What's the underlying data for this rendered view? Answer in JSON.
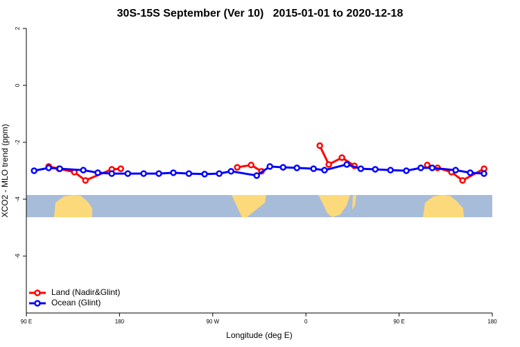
{
  "chart_data": {
    "type": "line",
    "title": "30S-15S September (Ver 10)   2015-01-01 to 2020-12-18",
    "x_label": "Longitude (deg E)",
    "y_label": "XCO2 - MLO trend (ppm)",
    "xlim": [
      -270,
      180
    ],
    "ylim": [
      -8,
      2
    ],
    "xticks": [
      {
        "value": -270,
        "label": "90 E"
      },
      {
        "value": -180,
        "label": "180"
      },
      {
        "value": -90,
        "label": "90 W"
      },
      0,
      {
        "value": 90,
        "label": "90 E"
      },
      180
    ],
    "yticks": [
      2,
      0,
      -2,
      -4,
      -6
    ],
    "legend": "bottom-left",
    "series": [
      {
        "name": "Land (Nadir&Glint)",
        "color": "#ff0000",
        "x": [
          -248.4,
          -238.4,
          -223.6,
          -212.9,
          -187.5,
          -178.8,
          null,
          -66.3,
          -52.9,
          -42.9,
          null,
          13.4,
          22.1,
          34.8,
          46.9,
          null,
          117.2,
          127.2,
          140.6,
          151.3,
          172.1
        ],
        "values": [
          -2.85,
          -2.93,
          -3.05,
          -3.34,
          -2.95,
          -2.93,
          null,
          -2.88,
          -2.8,
          -3.02,
          null,
          -2.12,
          -2.78,
          -2.54,
          -2.83,
          null,
          -2.8,
          -2.9,
          -3.05,
          -3.34,
          -2.93
        ]
      },
      {
        "name": "Ocean (Glint)",
        "color": "#0000ff",
        "x": [
          -262.5,
          -248.4,
          -237.7,
          -215,
          -201,
          -187.5,
          -172,
          -156.7,
          -142,
          -128,
          -113,
          -97.8,
          -83.7,
          -72.3,
          -47.5,
          -34.8,
          -22,
          -8.7,
          7.4,
          18,
          39.5,
          53,
          67,
          81.7,
          97,
          111,
          122,
          144.6,
          158.7,
          172
        ],
        "values": [
          -3.0,
          -2.9,
          -2.93,
          -2.98,
          -3.07,
          -3.1,
          -3.1,
          -3.1,
          -3.1,
          -3.07,
          -3.1,
          -3.12,
          -3.1,
          -3.02,
          -3.17,
          -2.85,
          -2.88,
          -2.9,
          -2.93,
          -2.98,
          -2.78,
          -2.93,
          -2.95,
          -2.98,
          -3.0,
          -2.9,
          -2.9,
          -2.98,
          -3.07,
          -3.1
        ]
      }
    ]
  }
}
